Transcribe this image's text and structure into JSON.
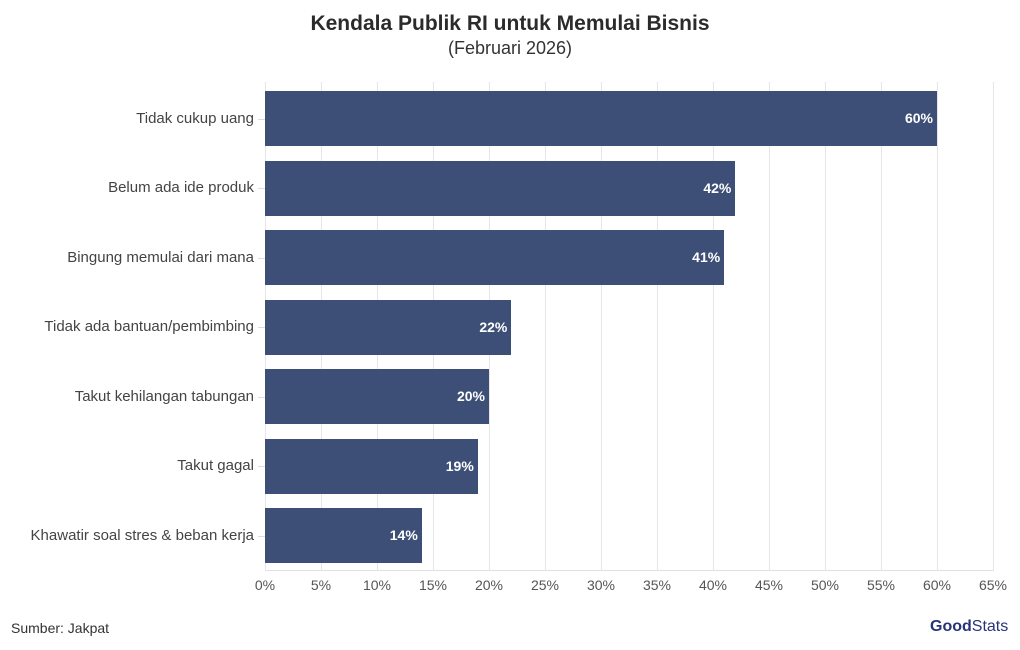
{
  "chart_data": {
    "type": "bar",
    "orientation": "horizontal",
    "title": "Kendala Publik RI untuk Memulai Bisnis",
    "subtitle": "(Februari 2026)",
    "categories": [
      "Tidak cukup uang",
      "Belum ada ide produk",
      "Bingung memulai dari mana",
      "Tidak ada bantuan/pembimbing",
      "Takut kehilangan tabungan",
      "Takut gagal",
      "Khawatir soal stres & beban kerja"
    ],
    "values": [
      60,
      42,
      41,
      22,
      20,
      19,
      14
    ],
    "value_labels": [
      "60%",
      "42%",
      "41%",
      "22%",
      "20%",
      "19%",
      "14%"
    ],
    "xlabel": "",
    "ylabel": "",
    "xlim": [
      0,
      65
    ],
    "xticks": [
      "0%",
      "5%",
      "10%",
      "15%",
      "20%",
      "25%",
      "30%",
      "35%",
      "40%",
      "45%",
      "50%",
      "55%",
      "60%",
      "65%"
    ],
    "grid": true,
    "bar_color": "#3d4f76"
  },
  "footer": {
    "source": "Sumber: Jakpat",
    "logo_bold": "Good",
    "logo_light": "Stats"
  }
}
